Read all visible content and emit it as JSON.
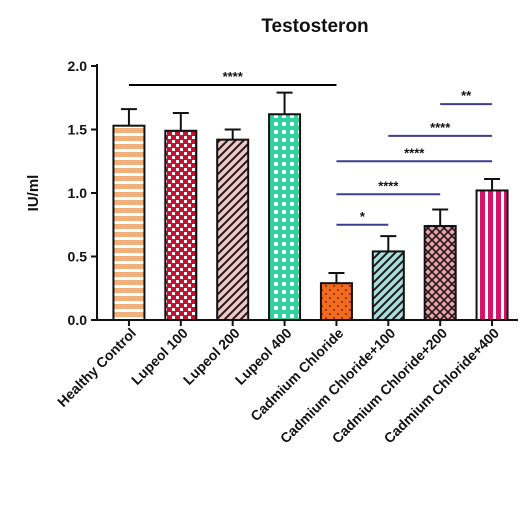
{
  "chart_data": {
    "type": "bar",
    "title": "Testosteron",
    "xlabel": "",
    "ylabel": "IU/ml",
    "ylim": [
      0,
      2.0
    ],
    "yticks": [
      "0.0",
      "0.5",
      "1.0",
      "1.5",
      "2.0"
    ],
    "grid": false,
    "legend": "none",
    "categories": [
      "Healthy Control",
      "Lupeol  100",
      "Lupeol  200",
      "Lupeol  400",
      "Cadmium Chloride",
      "Cadmium Chloride+100",
      "Cadmium Chloride+200",
      "Cadmium Chloride+400"
    ],
    "values": [
      1.53,
      1.49,
      1.42,
      1.62,
      0.29,
      0.54,
      0.74,
      1.02
    ],
    "errors": [
      0.13,
      0.14,
      0.08,
      0.17,
      0.08,
      0.12,
      0.13,
      0.09
    ],
    "colors": [
      "#f2b07a",
      "#c8102e",
      "#f5c5c5",
      "#2fd3a0",
      "#f26a1b",
      "#a8e0dc",
      "#f0a0a8",
      "#d6156a"
    ],
    "patterns": [
      "hlines",
      "checker",
      "diag",
      "grid",
      "dots",
      "diag",
      "crosshatch",
      "vlines"
    ],
    "significance": [
      {
        "from": 0,
        "to": 4,
        "y": 1.85,
        "label": "****",
        "color": "#000000"
      },
      {
        "from": 4,
        "to": 5,
        "y": 0.75,
        "label": "*",
        "color": "#3a3f8f"
      },
      {
        "from": 4,
        "to": 6,
        "y": 0.99,
        "label": "****",
        "color": "#3a3f8f"
      },
      {
        "from": 4,
        "to": 7,
        "y": 1.25,
        "label": "****",
        "color": "#3a3f8f"
      },
      {
        "from": 5,
        "to": 7,
        "y": 1.45,
        "label": "****",
        "color": "#3a3f8f"
      },
      {
        "from": 6,
        "to": 7,
        "y": 1.7,
        "label": "**",
        "color": "#3a3f8f"
      }
    ]
  }
}
